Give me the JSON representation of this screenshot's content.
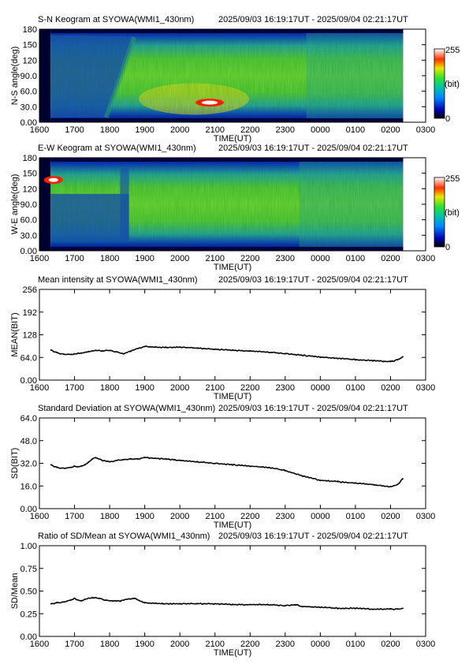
{
  "time_axis": {
    "tick_labels": [
      "1600",
      "1700",
      "1800",
      "1900",
      "2000",
      "2100",
      "2200",
      "2300",
      "0000",
      "0100",
      "0200",
      "0300"
    ],
    "xlabel": "TIME(UT)",
    "range_hours": [
      16.0,
      27.0
    ]
  },
  "chart_data": [
    {
      "type": "heatmap",
      "id": "sn",
      "title": "S-N Keogram at SYOWA(WMI1_430nm)",
      "period": "2025/09/03 16:19:17UT - 2025/09/04 02:21:17UT",
      "ylabel": "N-S angle(deg)",
      "xlabel": "TIME(UT)",
      "y_ticks": [
        "0.00",
        "30.0",
        "60.0",
        "90.0",
        "120",
        "150",
        "180"
      ],
      "ylim": [
        0,
        180
      ],
      "data_range_hours": [
        16.32,
        26.36
      ],
      "colorbar": {
        "max_label": "255",
        "unit_label": "(bit)",
        "min_label": "0"
      },
      "features": [
        {
          "note": "bright spot",
          "time": 20.85,
          "angle": 38
        }
      ]
    },
    {
      "type": "heatmap",
      "id": "ew",
      "title": "E-W Keogram at SYOWA(WMI1_430nm)",
      "period": "2025/09/03 16:19:17UT - 2025/09/04 02:21:17UT",
      "ylabel": "W-E angle(deg)",
      "xlabel": "TIME(UT)",
      "y_ticks": [
        "0.00",
        "30.0",
        "60.0",
        "90.0",
        "120",
        "150",
        "180"
      ],
      "ylim": [
        0,
        180
      ],
      "data_range_hours": [
        16.32,
        26.36
      ],
      "colorbar": {
        "max_label": "255",
        "unit_label": "(bit)",
        "min_label": "0"
      },
      "features": [
        {
          "note": "bright spot",
          "time": 16.4,
          "angle": 137
        }
      ]
    },
    {
      "type": "line",
      "id": "mean",
      "title": "Mean intensity at SYOWA(WMI1_430nm)",
      "period": "2025/09/03 16:19:17UT - 2025/09/04 02:21:17UT",
      "ylabel": "MEAN(BIT)",
      "xlabel": "TIME(UT)",
      "y_ticks": [
        "0.00",
        "64.0",
        "128",
        "192",
        "256"
      ],
      "ylim": [
        0,
        256
      ],
      "x": [
        16.33,
        16.5,
        16.7,
        16.9,
        17.0,
        17.2,
        17.4,
        17.6,
        17.8,
        18.0,
        18.2,
        18.4,
        18.6,
        18.8,
        19.0,
        19.3,
        19.6,
        20.0,
        20.5,
        21.0,
        21.5,
        22.0,
        22.5,
        23.0,
        23.5,
        24.0,
        24.5,
        25.0,
        25.5,
        25.8,
        26.0,
        26.2,
        26.35
      ],
      "y": [
        85,
        77,
        73,
        72,
        74,
        76,
        80,
        84,
        83,
        84,
        80,
        74,
        82,
        89,
        95,
        93,
        92,
        93,
        90,
        87,
        84,
        82,
        79,
        75,
        70,
        65,
        61,
        58,
        55,
        53,
        52,
        57,
        66
      ]
    },
    {
      "type": "line",
      "id": "sd",
      "title": "Standard Deviation at SYOWA(WMI1_430nm)",
      "period": "2025/09/03 16:19:17UT - 2025/09/04 02:21:17UT",
      "ylabel": "SD(BIT)",
      "xlabel": "TIME(UT)",
      "y_ticks": [
        "0.00",
        "16.0",
        "32.0",
        "48.0",
        "64.0"
      ],
      "ylim": [
        0,
        64
      ],
      "x": [
        16.33,
        16.5,
        16.7,
        16.9,
        17.0,
        17.1,
        17.2,
        17.3,
        17.4,
        17.5,
        17.6,
        17.7,
        17.8,
        18.0,
        18.2,
        18.4,
        18.6,
        18.8,
        19.0,
        19.3,
        19.6,
        20.0,
        20.5,
        21.0,
        21.5,
        22.0,
        22.5,
        23.0,
        23.5,
        24.0,
        24.5,
        25.0,
        25.5,
        25.8,
        26.0,
        26.2,
        26.35
      ],
      "y": [
        31,
        29,
        28.5,
        29,
        30,
        29.5,
        30,
        31,
        33,
        35,
        36,
        35,
        34,
        33,
        34,
        34.5,
        35,
        35,
        36,
        35.5,
        35,
        34,
        33,
        32,
        31,
        30,
        29,
        27,
        23,
        20,
        19,
        18,
        17,
        16,
        15.5,
        17,
        21
      ]
    },
    {
      "type": "line",
      "id": "ratio",
      "title": "Ratio of SD/Mean at SYOWA(WMI1_430nm)",
      "period": "2025/09/03 16:19:17UT - 2025/09/04 02:21:17UT",
      "ylabel": "SD/Mean",
      "xlabel": "TIME(UT)",
      "y_ticks": [
        "0.00",
        "0.25",
        "0.50",
        "0.75",
        "1.00"
      ],
      "ylim": [
        0,
        1
      ],
      "x": [
        16.33,
        16.5,
        16.7,
        16.9,
        17.0,
        17.1,
        17.2,
        17.3,
        17.5,
        17.7,
        17.9,
        18.1,
        18.3,
        18.5,
        18.7,
        19.0,
        19.5,
        20.0,
        20.5,
        21.0,
        21.5,
        22.0,
        22.5,
        23.0,
        23.3,
        23.5,
        24.0,
        24.5,
        25.0,
        25.5,
        26.0,
        26.2,
        26.35
      ],
      "y": [
        0.36,
        0.37,
        0.38,
        0.4,
        0.42,
        0.4,
        0.39,
        0.41,
        0.43,
        0.42,
        0.4,
        0.39,
        0.39,
        0.41,
        0.42,
        0.37,
        0.36,
        0.36,
        0.36,
        0.36,
        0.35,
        0.35,
        0.35,
        0.34,
        0.35,
        0.33,
        0.32,
        0.31,
        0.31,
        0.3,
        0.3,
        0.3,
        0.31
      ]
    }
  ]
}
